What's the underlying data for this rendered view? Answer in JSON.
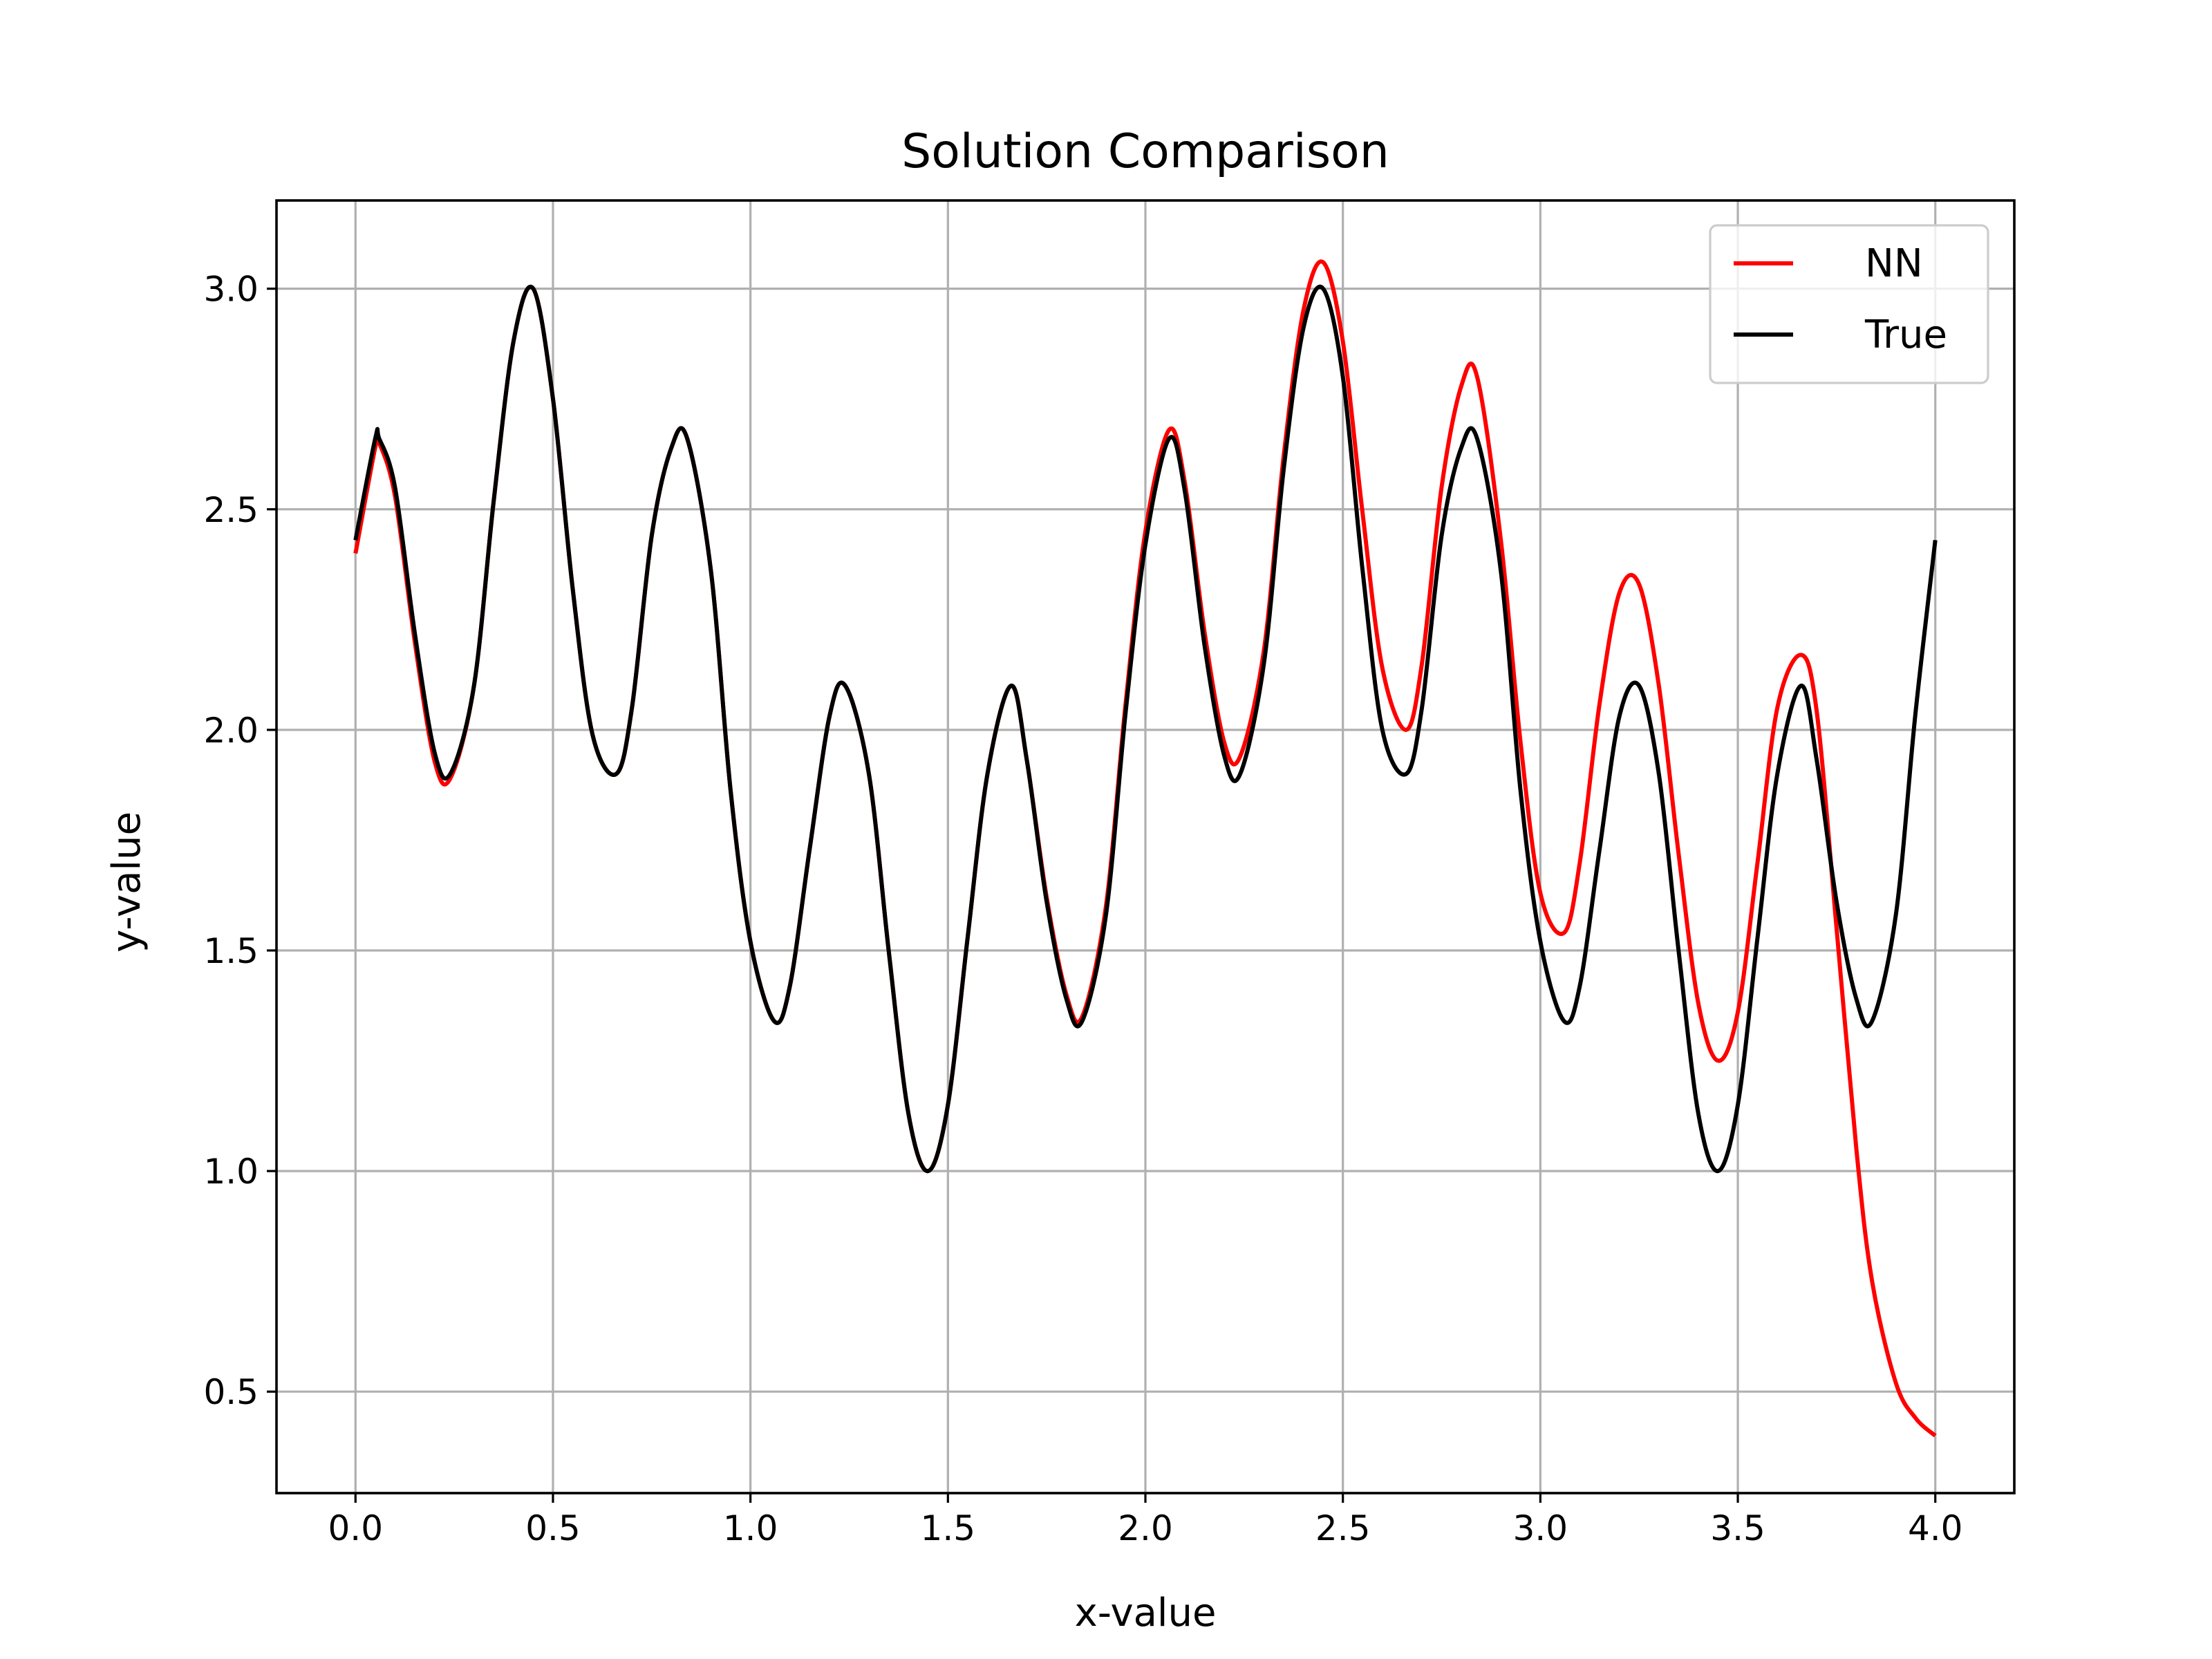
{
  "chart_data": {
    "type": "line",
    "title": "Solution Comparison",
    "xlabel": "x-value",
    "ylabel": "y-value",
    "xlim": [
      -0.2,
      4.2
    ],
    "ylim": [
      0.27,
      3.2
    ],
    "x_ticks": [
      0.0,
      0.5,
      1.0,
      1.5,
      2.0,
      2.5,
      3.0,
      3.5,
      4.0
    ],
    "x_tick_labels": [
      "0.0",
      "0.5",
      "1.0",
      "1.5",
      "2.0",
      "2.5",
      "3.0",
      "3.5",
      "4.0"
    ],
    "y_ticks": [
      0.5,
      1.0,
      1.5,
      2.0,
      2.5,
      3.0
    ],
    "y_tick_labels": [
      "0.5",
      "1.0",
      "1.5",
      "2.0",
      "2.5",
      "3.0"
    ],
    "grid": true,
    "legend_position": "top-right",
    "x": [
      0.0,
      0.05,
      0.06,
      0.1,
      0.15,
      0.2,
      0.24,
      0.3,
      0.35,
      0.4,
      0.45,
      0.5,
      0.55,
      0.6,
      0.66,
      0.7,
      0.75,
      0.8,
      0.84,
      0.9,
      0.95,
      1.0,
      1.06,
      1.1,
      1.15,
      1.2,
      1.24,
      1.3,
      1.35,
      1.4,
      1.45,
      1.5,
      1.55,
      1.6,
      1.66,
      1.7,
      1.75,
      1.8,
      1.84,
      1.9,
      1.95,
      2.0,
      2.06,
      2.1,
      2.15,
      2.2,
      2.24,
      2.3,
      2.35,
      2.4,
      2.45,
      2.5,
      2.55,
      2.6,
      2.66,
      2.7,
      2.75,
      2.8,
      2.84,
      2.9,
      2.95,
      3.0,
      3.06,
      3.1,
      3.15,
      3.2,
      3.25,
      3.3,
      3.35,
      3.4,
      3.45,
      3.5,
      3.55,
      3.6,
      3.66,
      3.7,
      3.75,
      3.8,
      3.84,
      3.9,
      3.95,
      4.0
    ],
    "series": [
      {
        "name": "NN",
        "color": "#ff0000",
        "values": [
          2.4,
          2.64,
          2.65,
          2.53,
          2.2,
          1.93,
          1.89,
          2.1,
          2.52,
          2.88,
          3.0,
          2.75,
          2.32,
          1.99,
          1.9,
          2.05,
          2.44,
          2.64,
          2.66,
          2.36,
          1.86,
          1.52,
          1.34,
          1.42,
          1.73,
          2.03,
          2.1,
          1.9,
          1.5,
          1.13,
          1.0,
          1.15,
          1.53,
          1.9,
          2.1,
          1.93,
          1.62,
          1.4,
          1.35,
          1.6,
          2.06,
          2.45,
          2.68,
          2.56,
          2.22,
          1.97,
          1.94,
          2.18,
          2.62,
          2.95,
          3.06,
          2.88,
          2.49,
          2.14,
          2.0,
          2.15,
          2.55,
          2.78,
          2.8,
          2.43,
          1.97,
          1.63,
          1.54,
          1.7,
          2.06,
          2.31,
          2.33,
          2.1,
          1.72,
          1.38,
          1.25,
          1.36,
          1.7,
          2.05,
          2.17,
          2.04,
          1.55,
          1.05,
          0.75,
          0.52,
          0.44,
          0.4
        ]
      },
      {
        "name": "True",
        "color": "#000000",
        "values": [
          2.43,
          2.66,
          2.66,
          2.55,
          2.22,
          1.95,
          1.9,
          2.1,
          2.52,
          2.88,
          3.0,
          2.75,
          2.32,
          1.99,
          1.9,
          2.05,
          2.44,
          2.64,
          2.66,
          2.36,
          1.86,
          1.52,
          1.34,
          1.42,
          1.73,
          2.03,
          2.1,
          1.9,
          1.5,
          1.13,
          1.0,
          1.15,
          1.53,
          1.9,
          2.1,
          1.93,
          1.61,
          1.39,
          1.34,
          1.58,
          2.04,
          2.42,
          2.66,
          2.54,
          2.19,
          1.94,
          1.9,
          2.15,
          2.59,
          2.91,
          3.0,
          2.8,
          2.36,
          2.0,
          1.9,
          2.05,
          2.44,
          2.64,
          2.66,
          2.36,
          1.86,
          1.52,
          1.34,
          1.42,
          1.73,
          2.03,
          2.1,
          1.9,
          1.5,
          1.13,
          1.0,
          1.15,
          1.53,
          1.9,
          2.1,
          1.93,
          1.61,
          1.39,
          1.34,
          1.58,
          2.04,
          2.43
        ]
      }
    ]
  }
}
